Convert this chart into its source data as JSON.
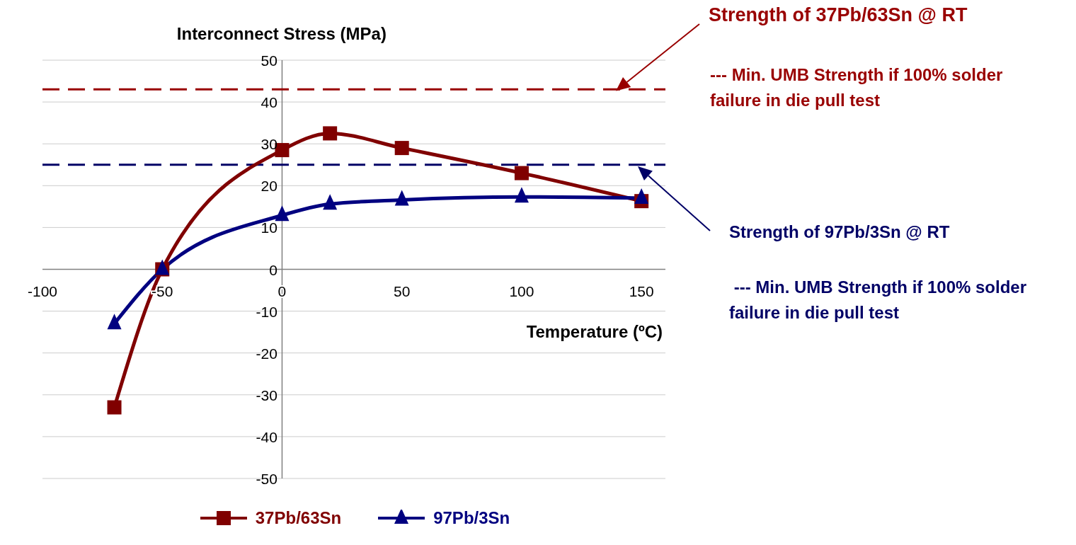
{
  "chart_data": {
    "type": "line",
    "title": "Interconnect Stress (MPa)",
    "xlabel": "Temperature (ºC)",
    "x": [
      -70,
      -50,
      0,
      20,
      50,
      100,
      150
    ],
    "series": [
      {
        "name": "37Pb/63Sn",
        "color": "#800000",
        "marker": "square",
        "values": [
          -33,
          0,
          28.5,
          32.5,
          29,
          23,
          16.3
        ]
      },
      {
        "name": "97Pb/3Sn",
        "color": "#000080",
        "marker": "triangle",
        "values": [
          -13,
          0,
          12.9,
          15.6,
          16.6,
          17.3,
          17
        ]
      }
    ],
    "xlim": [
      -100,
      160
    ],
    "xticks": [
      -100,
      -50,
      0,
      50,
      100,
      150
    ],
    "ylim": [
      -50,
      50
    ],
    "yticks": [
      -50,
      -40,
      -30,
      -20,
      -10,
      0,
      10,
      20,
      30,
      40,
      50
    ],
    "grid": "y",
    "legend": "bottom",
    "line_style": "solid",
    "ref_lines": [
      {
        "axis": "y",
        "value": 43,
        "label": "Strength of 37Pb/63Sn @ RT",
        "color": "#990000",
        "line_style": "dashed"
      },
      {
        "axis": "y",
        "value": 25,
        "label": "Strength of 97Pb/3Sn @ RT",
        "color": "#000066",
        "line_style": "dashed"
      }
    ],
    "annotations": [
      "--- Min. UMB Strength if 100% solder failure in die pull test",
      " --- Min. UMB Strength if 100% solder failure in die pull test"
    ]
  }
}
